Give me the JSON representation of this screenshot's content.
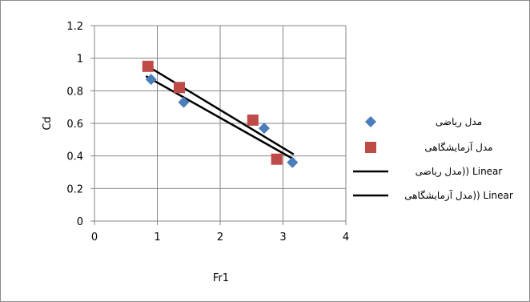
{
  "chart_data": {
    "type": "scatter",
    "xlabel": "Fr1",
    "ylabel": "Cd",
    "xlim": [
      0,
      4
    ],
    "ylim": [
      0,
      1.2
    ],
    "x_ticks": [
      "0",
      "1",
      "2",
      "3",
      "4"
    ],
    "y_ticks": [
      "0",
      "0.2",
      "0.4",
      "0.6",
      "0.8",
      "1",
      "1.2"
    ],
    "grid": true,
    "legend_position": "right",
    "series": [
      {
        "name": "مدل ریاضی",
        "marker": "diamond",
        "color": "#4a7ebb",
        "points": [
          {
            "x": 0.9,
            "y": 0.87
          },
          {
            "x": 1.42,
            "y": 0.73
          },
          {
            "x": 2.7,
            "y": 0.57
          },
          {
            "x": 3.15,
            "y": 0.36
          }
        ]
      },
      {
        "name": "مدل آزمایشگاهی",
        "marker": "square",
        "color": "#be4b48",
        "points": [
          {
            "x": 0.85,
            "y": 0.95
          },
          {
            "x": 1.35,
            "y": 0.82
          },
          {
            "x": 2.52,
            "y": 0.62
          },
          {
            "x": 2.9,
            "y": 0.38
          }
        ]
      }
    ],
    "trendlines": [
      {
        "name": "Linear (مدل ریاضی)",
        "legend_label": "مدل ریاضی)) Linear",
        "color": "#000000",
        "from": {
          "x": 0.82,
          "y": 0.89
        },
        "to": {
          "x": 3.17,
          "y": 0.38
        }
      },
      {
        "name": "Linear (مدل آزمایشگاهی)",
        "legend_label": "مدل آزمایشگاهی)) Linear",
        "color": "#000000",
        "from": {
          "x": 0.85,
          "y": 0.95
        },
        "to": {
          "x": 3.17,
          "y": 0.41
        }
      }
    ]
  }
}
